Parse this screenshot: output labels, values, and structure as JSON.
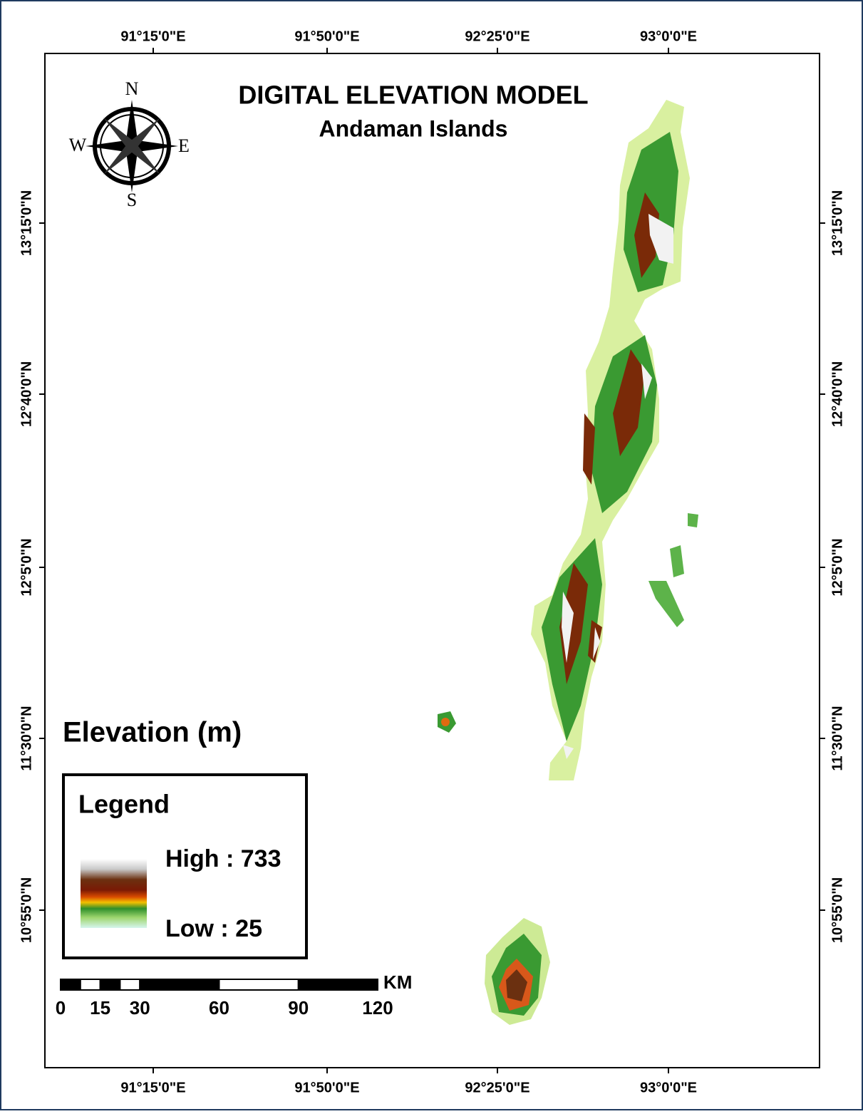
{
  "title": "DIGITAL ELEVATION MODEL",
  "subtitle": "Andaman Islands",
  "compass": {
    "north": "N",
    "east": "E",
    "south": "S",
    "west": "W"
  },
  "longitude_labels": [
    "91°15'0\"E",
    "91°50'0\"E",
    "92°25'0\"E",
    "93°0'0\"E"
  ],
  "latitude_labels": [
    "13°15'0\"N",
    "12°40'0\"N",
    "12°5'0\"N",
    "11°30'0\"N",
    "10°55'0\"N"
  ],
  "elevation_heading": "Elevation (m)",
  "legend": {
    "title": "Legend",
    "high": "High : 733",
    "low": "Low : 25"
  },
  "scale_bar": {
    "ticks": [
      0,
      15,
      30,
      60,
      90,
      120
    ],
    "unit": "KM"
  }
}
